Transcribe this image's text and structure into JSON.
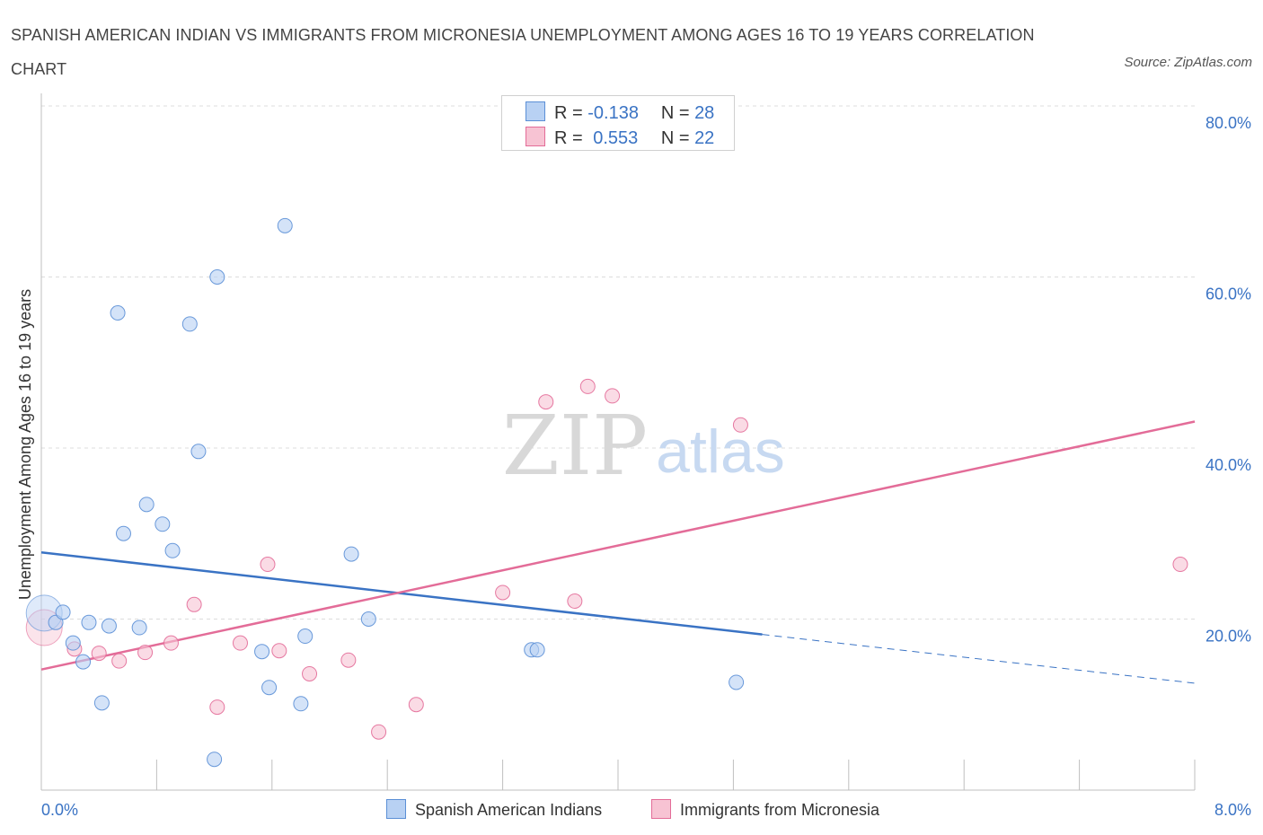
{
  "header": {
    "title": "SPANISH AMERICAN INDIAN VS IMMIGRANTS FROM MICRONESIA UNEMPLOYMENT AMONG AGES 16 TO 19 YEARS CORRELATION CHART",
    "source": "Source: ZipAtlas.com"
  },
  "watermark": {
    "zip": "ZIP",
    "atlas": "atlas"
  },
  "legend": {
    "r_label": "R =",
    "n_label": "N =",
    "series": [
      {
        "r": "-0.138",
        "n": "28"
      },
      {
        "r": "0.553",
        "n": "22"
      }
    ]
  },
  "chart_data": {
    "type": "scatter",
    "ylabel": "Unemployment Among Ages 16 to 19 years",
    "xlim": [
      0,
      8
    ],
    "ylim": [
      0,
      80
    ],
    "x_tick_labels": [
      "0.0%",
      "8.0%"
    ],
    "y_ticks": [
      20,
      40,
      60,
      80
    ],
    "y_tick_labels": [
      "20.0%",
      "40.0%",
      "60.0%",
      "80.0%"
    ],
    "grid": true,
    "colors": {
      "blue": "#5b8fd6",
      "blue_fill": "#b8d1f3",
      "pink": "#e36c98",
      "pink_fill": "#f7c3d3",
      "tick_label": "#3a73c4"
    },
    "series": [
      {
        "name": "Spanish American Indians",
        "color": "#5b8fd6",
        "trend": {
          "x0": 0.0,
          "y0": 27.8,
          "x1": 5.0,
          "y1": 18.2,
          "dash_x1": 8.0,
          "dash_y1": 12.5
        },
        "points": [
          [
            0.02,
            20.7
          ],
          [
            0.1,
            19.6
          ],
          [
            0.15,
            20.8
          ],
          [
            0.22,
            17.2
          ],
          [
            0.29,
            15.0
          ],
          [
            0.33,
            19.6
          ],
          [
            0.42,
            10.2
          ],
          [
            0.47,
            19.2
          ],
          [
            0.53,
            55.8
          ],
          [
            0.57,
            30.0
          ],
          [
            0.68,
            19.0
          ],
          [
            0.73,
            33.4
          ],
          [
            0.84,
            31.1
          ],
          [
            0.91,
            28.0
          ],
          [
            1.03,
            54.5
          ],
          [
            1.09,
            39.6
          ],
          [
            1.2,
            3.6
          ],
          [
            1.22,
            60.0
          ],
          [
            1.53,
            16.2
          ],
          [
            1.58,
            12.0
          ],
          [
            1.69,
            66.0
          ],
          [
            1.8,
            10.1
          ],
          [
            1.83,
            18.0
          ],
          [
            2.15,
            27.6
          ],
          [
            2.27,
            20.0
          ],
          [
            3.4,
            16.4
          ],
          [
            3.44,
            16.4
          ],
          [
            4.82,
            12.6
          ]
        ]
      },
      {
        "name": "Immigrants from Micronesia",
        "color": "#e36c98",
        "trend": {
          "x0": 0.0,
          "y0": 14.1,
          "x1": 8.0,
          "y1": 43.1
        },
        "points": [
          [
            0.02,
            19.0
          ],
          [
            0.23,
            16.5
          ],
          [
            0.4,
            16.0
          ],
          [
            0.54,
            15.1
          ],
          [
            0.72,
            16.1
          ],
          [
            0.9,
            17.2
          ],
          [
            1.06,
            21.7
          ],
          [
            1.22,
            9.7
          ],
          [
            1.38,
            17.2
          ],
          [
            1.57,
            26.4
          ],
          [
            1.65,
            16.3
          ],
          [
            1.86,
            13.6
          ],
          [
            2.13,
            15.2
          ],
          [
            2.34,
            6.8
          ],
          [
            2.6,
            10.0
          ],
          [
            3.2,
            23.1
          ],
          [
            3.5,
            45.4
          ],
          [
            3.7,
            22.1
          ],
          [
            3.79,
            47.2
          ],
          [
            3.96,
            46.1
          ],
          [
            4.85,
            42.7
          ],
          [
            7.9,
            26.4
          ]
        ]
      }
    ]
  }
}
